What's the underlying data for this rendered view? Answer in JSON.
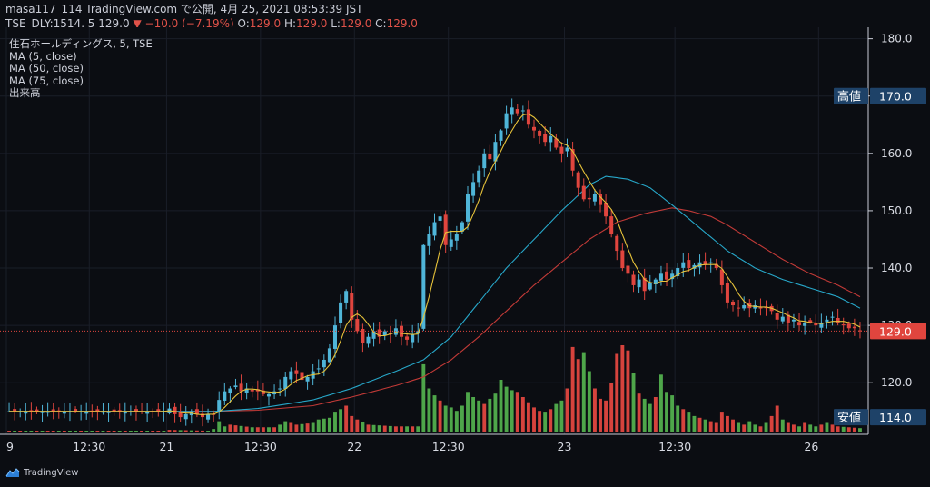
{
  "header": {
    "line1": "masa117_114 TradingView.com で公開, 4月 25, 2021 08:53:39 JST",
    "symbol": "TSE_DLY:1514, 5",
    "price": "129.0",
    "change": "−10.0 (−7.19%)",
    "o_label": "O:",
    "o": "129.0",
    "h_label": "H:",
    "h": "129.0",
    "l_label": "L:",
    "l": "129.0",
    "c_label": "C:",
    "c": "129.0"
  },
  "legend": {
    "title": "住石ホールディングス, 5, TSE",
    "ma1": "MA (5, close)",
    "ma2": "MA (50, close)",
    "ma3": "MA (75, close)",
    "volume": "出来高"
  },
  "footer": {
    "brand": "TradingView"
  },
  "colors": {
    "up": "#4fb5d8",
    "down": "#e0453e",
    "vol_up": "#4ea64a",
    "vol_down": "#d6433d",
    "ma5": "#e6c23a",
    "ma50": "#27a7c9",
    "ma75": "#c23a37",
    "label_bg": "#1e4268",
    "price_label_bg": "#e0453e"
  },
  "chart_data": {
    "type": "candlestick",
    "y_range": [
      111,
      182
    ],
    "y_ticks": [
      "180.0",
      "170.0",
      "160.0",
      "150.0",
      "140.0",
      "130.0",
      "120.0"
    ],
    "x_ticks": [
      "9",
      "12:30",
      "21",
      "12:30",
      "22",
      "12:30",
      "23",
      "12:30",
      "26"
    ],
    "high_label": "高値",
    "high_value": "170.0",
    "low_label": "安値",
    "low_value": "114.0",
    "last_price": "129.0",
    "close_path": [
      [
        0,
        115.0
      ],
      [
        28,
        115.0
      ],
      [
        29,
        115.5
      ],
      [
        30,
        114.5
      ],
      [
        31,
        114.0
      ],
      [
        32,
        114.5
      ],
      [
        33,
        115.0
      ],
      [
        34,
        114.5
      ],
      [
        35,
        114.0
      ],
      [
        36,
        114.5
      ],
      [
        37,
        114.5
      ],
      [
        38,
        117.0
      ],
      [
        39,
        118.5
      ],
      [
        40,
        119.0
      ],
      [
        41,
        119.5
      ],
      [
        42,
        118.5
      ],
      [
        43,
        119.0
      ],
      [
        44,
        118.5
      ],
      [
        45,
        118.5
      ],
      [
        46,
        118.0
      ],
      [
        47,
        118.0
      ],
      [
        48,
        118.5
      ],
      [
        49,
        119.0
      ],
      [
        50,
        121.0
      ],
      [
        51,
        122.0
      ],
      [
        52,
        121.5
      ],
      [
        53,
        120.5
      ],
      [
        54,
        121.0
      ],
      [
        55,
        122.0
      ],
      [
        56,
        122.5
      ],
      [
        57,
        124.0
      ],
      [
        58,
        126.0
      ],
      [
        59,
        130.0
      ],
      [
        60,
        134.0
      ],
      [
        61,
        136.0
      ],
      [
        62,
        131.0
      ],
      [
        63,
        129.0
      ],
      [
        64,
        127.0
      ],
      [
        65,
        128.0
      ],
      [
        66,
        129.0
      ],
      [
        67,
        128.0
      ],
      [
        68,
        129.0
      ],
      [
        69,
        128.5
      ],
      [
        70,
        129.5
      ],
      [
        71,
        128.0
      ],
      [
        72,
        127.5
      ],
      [
        73,
        128.5
      ],
      [
        74,
        129.0
      ],
      [
        75,
        144.0
      ],
      [
        76,
        146.0
      ],
      [
        77,
        148.0
      ],
      [
        78,
        149.0
      ],
      [
        79,
        144.0
      ],
      [
        80,
        145.0
      ],
      [
        81,
        146.0
      ],
      [
        82,
        148.0
      ],
      [
        83,
        153.0
      ],
      [
        84,
        155.0
      ],
      [
        85,
        157.0
      ],
      [
        86,
        160.0
      ],
      [
        87,
        159.0
      ],
      [
        88,
        162.0
      ],
      [
        89,
        164.0
      ],
      [
        90,
        167.0
      ],
      [
        91,
        168.0
      ],
      [
        92,
        167.0
      ],
      [
        93,
        167.5
      ],
      [
        94,
        165.0
      ],
      [
        95,
        164.0
      ],
      [
        96,
        163.0
      ],
      [
        97,
        162.0
      ],
      [
        98,
        163.0
      ],
      [
        99,
        161.0
      ],
      [
        100,
        160.0
      ],
      [
        101,
        161.0
      ],
      [
        102,
        157.0
      ],
      [
        103,
        154.0
      ],
      [
        104,
        152.0
      ],
      [
        105,
        152.0
      ],
      [
        106,
        153.0
      ],
      [
        107,
        151.0
      ],
      [
        108,
        149.0
      ],
      [
        109,
        146.0
      ],
      [
        110,
        143.0
      ],
      [
        111,
        140.0
      ],
      [
        112,
        139.0
      ],
      [
        113,
        137.0
      ],
      [
        114,
        138.0
      ],
      [
        115,
        136.0
      ],
      [
        116,
        137.5
      ],
      [
        117,
        138.0
      ],
      [
        118,
        139.0
      ],
      [
        119,
        138.0
      ],
      [
        120,
        139.0
      ],
      [
        121,
        140.0
      ],
      [
        122,
        141.0
      ],
      [
        123,
        140.0
      ],
      [
        124,
        140.5
      ],
      [
        125,
        141.0
      ],
      [
        126,
        140.5
      ],
      [
        127,
        141.0
      ],
      [
        128,
        140.0
      ],
      [
        129,
        137.0
      ],
      [
        130,
        134.0
      ],
      [
        131,
        133.5
      ],
      [
        132,
        133.0
      ],
      [
        133,
        133.5
      ],
      [
        134,
        133.0
      ],
      [
        135,
        133.5
      ],
      [
        136,
        133.0
      ],
      [
        137,
        133.0
      ],
      [
        138,
        132.5
      ],
      [
        139,
        131.0
      ],
      [
        140,
        131.5
      ],
      [
        141,
        130.5
      ],
      [
        142,
        131.0
      ],
      [
        143,
        130.0
      ],
      [
        144,
        130.5
      ],
      [
        145,
        130.5
      ],
      [
        146,
        130.0
      ],
      [
        147,
        130.5
      ],
      [
        148,
        131.0
      ],
      [
        149,
        131.5
      ],
      [
        150,
        130.5
      ],
      [
        151,
        130.0
      ],
      [
        152,
        129.5
      ],
      [
        153,
        129.5
      ],
      [
        154,
        129.0
      ]
    ],
    "ma50_path": [
      [
        0,
        115.0
      ],
      [
        37,
        115.0
      ],
      [
        45,
        115.5
      ],
      [
        55,
        117.0
      ],
      [
        62,
        119.0
      ],
      [
        70,
        122.0
      ],
      [
        75,
        124.0
      ],
      [
        80,
        128.0
      ],
      [
        85,
        134.0
      ],
      [
        90,
        140.0
      ],
      [
        95,
        145.0
      ],
      [
        100,
        150.0
      ],
      [
        105,
        154.5
      ],
      [
        108,
        156.0
      ],
      [
        112,
        155.5
      ],
      [
        116,
        154.0
      ],
      [
        120,
        151.0
      ],
      [
        125,
        147.0
      ],
      [
        130,
        143.0
      ],
      [
        135,
        140.0
      ],
      [
        140,
        138.0
      ],
      [
        145,
        136.5
      ],
      [
        150,
        135.0
      ],
      [
        154,
        133.0
      ]
    ],
    "ma75_path": [
      [
        0,
        115.0
      ],
      [
        37,
        115.0
      ],
      [
        45,
        115.2
      ],
      [
        55,
        116.0
      ],
      [
        62,
        117.5
      ],
      [
        70,
        119.5
      ],
      [
        75,
        121.0
      ],
      [
        80,
        124.0
      ],
      [
        85,
        128.0
      ],
      [
        90,
        132.5
      ],
      [
        95,
        137.0
      ],
      [
        100,
        141.0
      ],
      [
        105,
        145.0
      ],
      [
        110,
        148.0
      ],
      [
        115,
        149.5
      ],
      [
        120,
        150.5
      ],
      [
        123,
        150.0
      ],
      [
        127,
        149.0
      ],
      [
        130,
        147.5
      ],
      [
        135,
        144.5
      ],
      [
        140,
        141.5
      ],
      [
        145,
        139.0
      ],
      [
        150,
        137.0
      ],
      [
        154,
        135.0
      ]
    ],
    "volume_max": 100,
    "volume_path": [
      [
        0,
        1
      ],
      [
        28,
        1
      ],
      [
        29,
        2
      ],
      [
        36,
        1
      ],
      [
        37,
        3
      ],
      [
        38,
        12
      ],
      [
        39,
        6
      ],
      [
        40,
        8
      ],
      [
        44,
        5
      ],
      [
        48,
        5
      ],
      [
        49,
        8
      ],
      [
        50,
        12
      ],
      [
        51,
        10
      ],
      [
        52,
        8
      ],
      [
        55,
        10
      ],
      [
        56,
        14
      ],
      [
        58,
        16
      ],
      [
        59,
        22
      ],
      [
        60,
        26
      ],
      [
        61,
        30
      ],
      [
        62,
        18
      ],
      [
        63,
        14
      ],
      [
        65,
        8
      ],
      [
        70,
        6
      ],
      [
        74,
        6
      ],
      [
        75,
        78
      ],
      [
        76,
        50
      ],
      [
        77,
        42
      ],
      [
        78,
        36
      ],
      [
        79,
        30
      ],
      [
        80,
        28
      ],
      [
        81,
        24
      ],
      [
        82,
        30
      ],
      [
        83,
        46
      ],
      [
        84,
        40
      ],
      [
        85,
        36
      ],
      [
        86,
        32
      ],
      [
        87,
        38
      ],
      [
        88,
        44
      ],
      [
        89,
        60
      ],
      [
        90,
        52
      ],
      [
        91,
        48
      ],
      [
        92,
        46
      ],
      [
        93,
        40
      ],
      [
        94,
        34
      ],
      [
        95,
        28
      ],
      [
        96,
        24
      ],
      [
        97,
        22
      ],
      [
        98,
        26
      ],
      [
        99,
        32
      ],
      [
        100,
        36
      ],
      [
        101,
        50
      ],
      [
        102,
        98
      ],
      [
        103,
        84
      ],
      [
        104,
        92
      ],
      [
        105,
        70
      ],
      [
        106,
        50
      ],
      [
        107,
        38
      ],
      [
        108,
        36
      ],
      [
        109,
        56
      ],
      [
        110,
        90
      ],
      [
        111,
        100
      ],
      [
        112,
        94
      ],
      [
        113,
        68
      ],
      [
        114,
        44
      ],
      [
        115,
        38
      ],
      [
        116,
        32
      ],
      [
        117,
        40
      ],
      [
        118,
        66
      ],
      [
        119,
        46
      ],
      [
        120,
        42
      ],
      [
        121,
        30
      ],
      [
        122,
        26
      ],
      [
        123,
        22
      ],
      [
        124,
        18
      ],
      [
        125,
        16
      ],
      [
        126,
        14
      ],
      [
        127,
        12
      ],
      [
        128,
        10
      ],
      [
        129,
        22
      ],
      [
        130,
        18
      ],
      [
        131,
        14
      ],
      [
        132,
        10
      ],
      [
        133,
        8
      ],
      [
        134,
        12
      ],
      [
        135,
        8
      ],
      [
        136,
        6
      ],
      [
        137,
        10
      ],
      [
        138,
        18
      ],
      [
        139,
        30
      ],
      [
        140,
        14
      ],
      [
        141,
        10
      ],
      [
        142,
        8
      ],
      [
        143,
        6
      ],
      [
        144,
        10
      ],
      [
        145,
        8
      ],
      [
        146,
        6
      ],
      [
        147,
        8
      ],
      [
        148,
        10
      ],
      [
        150,
        6
      ],
      [
        154,
        4
      ]
    ]
  }
}
